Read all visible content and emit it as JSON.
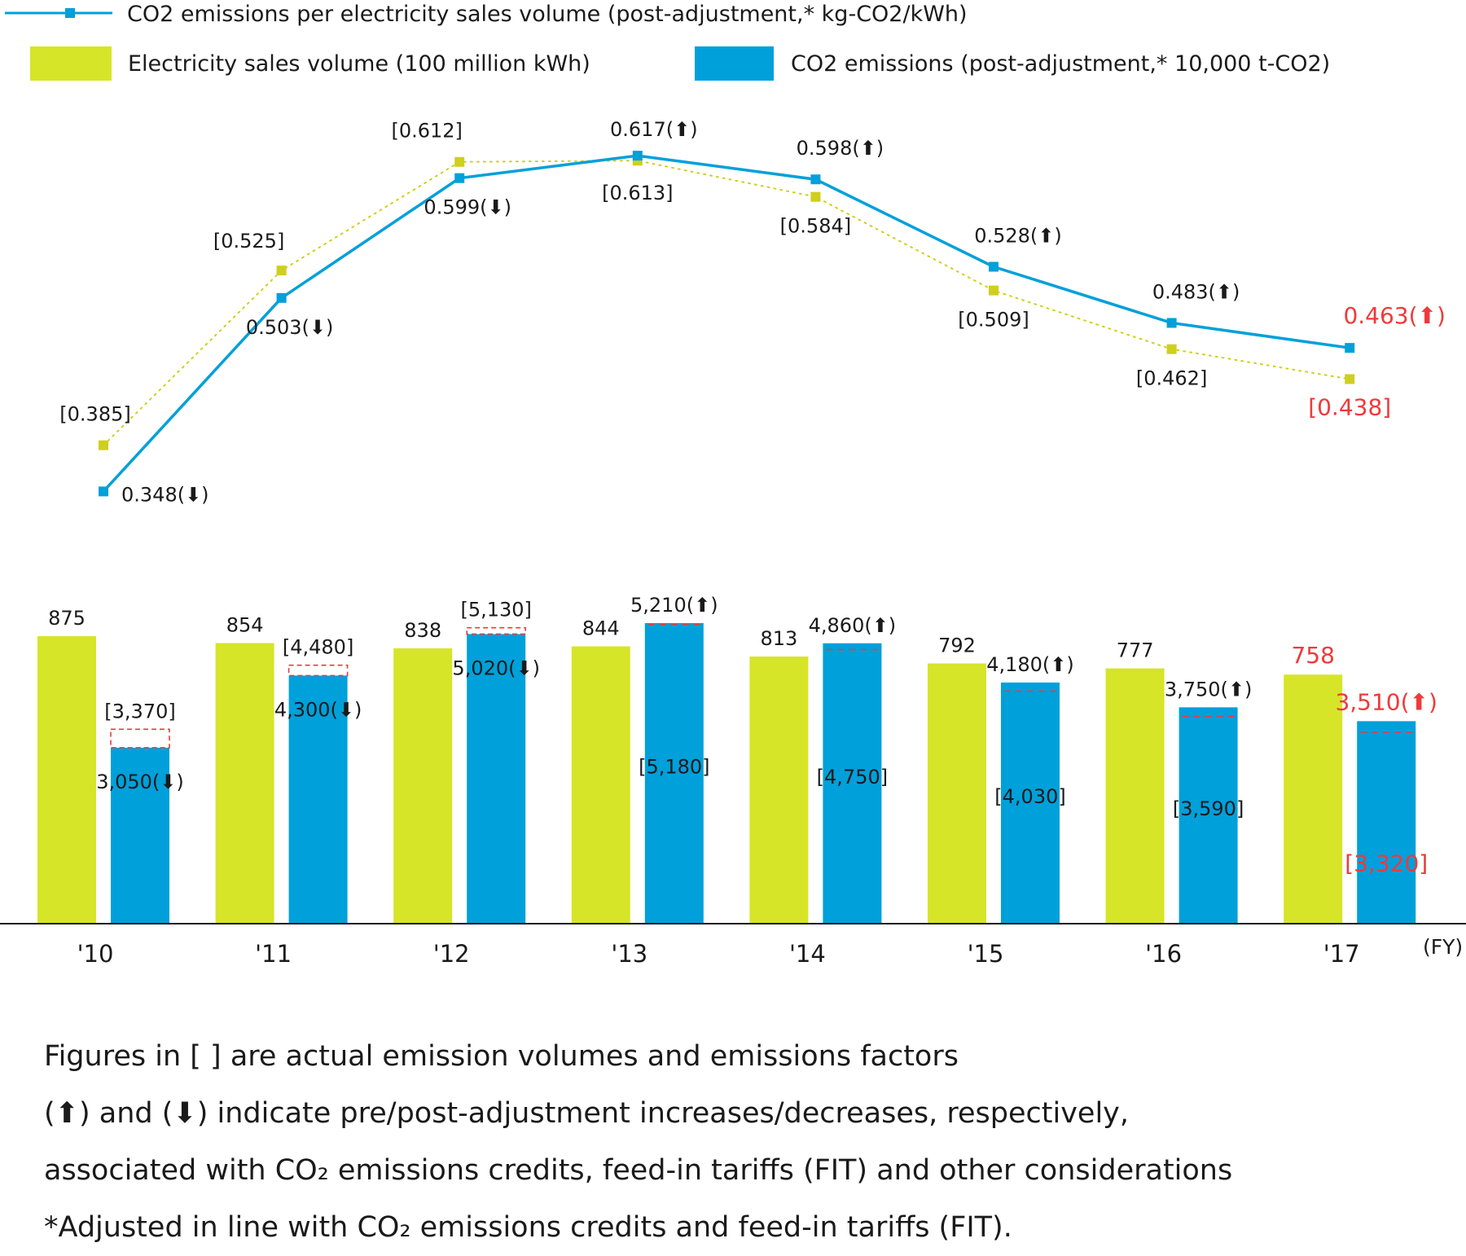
{
  "legend": {
    "line_label": "CO2 emissions per electricity sales volume (post-adjustment,* kg-CO2/kWh)",
    "sales_label": "Electricity sales volume (100 million kWh)",
    "emissions_label": "CO2 emissions (post-adjustment,* 10,000 t-CO2)"
  },
  "colors": {
    "sales": "#d6e528",
    "emissions": "#00a0da",
    "actual_marker": "#cfcf1e",
    "actual_box": "#ef3a3a",
    "highlight": "#ef3a3a",
    "axis": "#1a1a1a"
  },
  "chart_data": {
    "type": "bar",
    "categories": [
      "'10",
      "'11",
      "'12",
      "'13",
      "'14",
      "'15",
      "'16",
      "'17"
    ],
    "x_unit": "(FY)",
    "series": [
      {
        "name": "Electricity sales volume (100 million kWh)",
        "values": [
          875,
          854,
          838,
          844,
          813,
          792,
          777,
          758
        ]
      },
      {
        "name": "CO2 emissions (post-adjustment,* 10,000 t-CO2)",
        "values": [
          3050,
          4300,
          5020,
          5210,
          4860,
          4180,
          3750,
          3510
        ]
      },
      {
        "name": "CO2 emissions per electricity sales volume (post-adjustment,* kg-CO2/kWh)",
        "type": "line",
        "values": [
          0.348,
          0.503,
          0.599,
          0.617,
          0.598,
          0.528,
          0.483,
          0.463
        ]
      }
    ],
    "actual_emissions": [
      3370,
      4480,
      5130,
      5180,
      4750,
      4030,
      3590,
      3320
    ],
    "actual_factors": [
      0.385,
      0.525,
      0.612,
      0.613,
      0.584,
      0.509,
      0.462,
      0.438
    ],
    "bar_labels": {
      "sales": [
        "875",
        "854",
        "838",
        "844",
        "813",
        "792",
        "777",
        "758"
      ],
      "emissions": [
        "3,050(⬇)",
        "4,300(⬇)",
        "5,020(⬇)",
        "5,210(⬆)",
        "4,860(⬆)",
        "4,180(⬆)",
        "3,750(⬆)",
        "3,510(⬆)"
      ],
      "actual_emissions": [
        "[3,370]",
        "[4,480]",
        "[5,130]",
        "[5,180]",
        "[4,750]",
        "[4,030]",
        "[3,590]",
        "[3,320]"
      ],
      "factors": [
        "0.348(⬇)",
        "0.503(⬇)",
        "0.599(⬇)",
        "0.617(⬆)",
        "0.598(⬆)",
        "0.528(⬆)",
        "0.483(⬆)",
        "0.463(⬆)"
      ],
      "actual_factors": [
        "[0.385]",
        "[0.525]",
        "[0.612]",
        "[0.613]",
        "[0.584]",
        "[0.509]",
        "[0.462]",
        "[0.438]"
      ]
    },
    "highlight_category": "'17",
    "legend_position": "top-left",
    "grid": false
  },
  "notes": [
    "Figures in [ ] are actual emission volumes and emissions factors",
    "(⬆) and (⬇) indicate pre/post-adjustment increases/decreases, respectively,",
    "associated with CO₂ emissions credits, feed-in tariffs (FIT) and other considerations",
    "*Adjusted in line with CO₂ emissions credits and feed-in tariffs (FIT)."
  ]
}
